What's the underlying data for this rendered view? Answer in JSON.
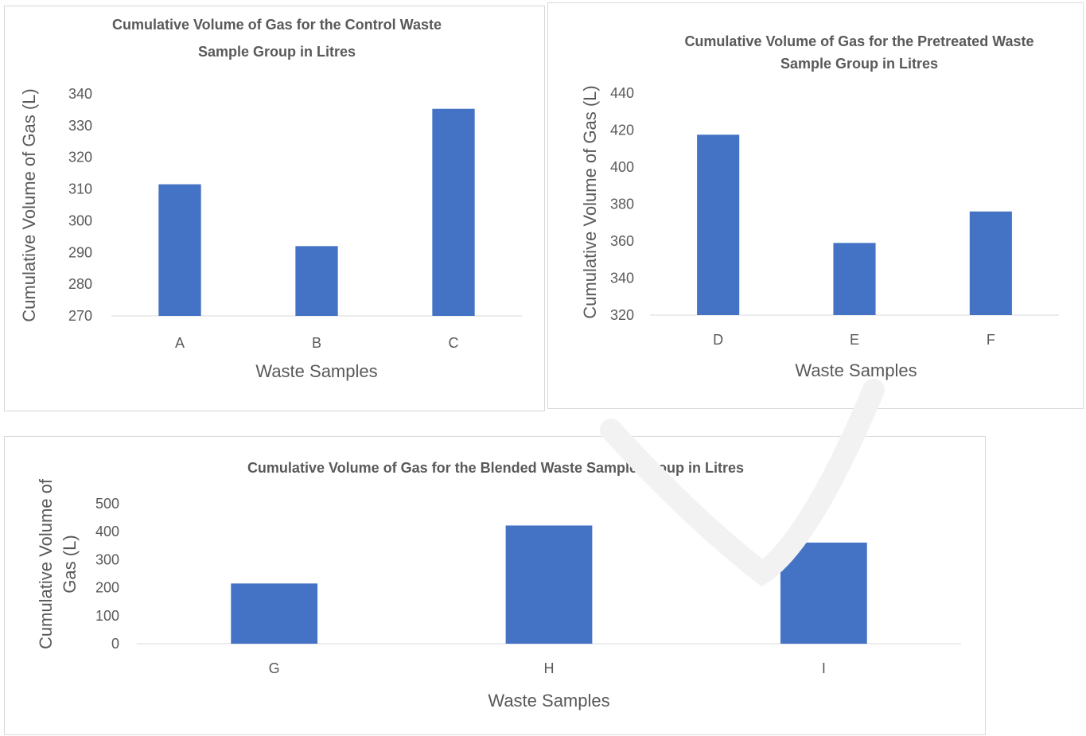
{
  "colors": {
    "bar": "#4472c4",
    "axis": "#d9d9d9",
    "text": "#595959"
  },
  "chart_data": [
    {
      "type": "bar",
      "title_lines": [
        "Cumulative Volume of Gas for the Control Waste",
        "Sample Group in Litres"
      ],
      "xlabel": "Waste Samples",
      "ylabel_lines": [
        "Cumulative Volume of Gas (L)"
      ],
      "categories": [
        "A",
        "B",
        "C"
      ],
      "values": [
        311.5,
        292,
        335.3
      ],
      "ylim": [
        270,
        340
      ],
      "yticks": [
        270,
        280,
        290,
        300,
        310,
        320,
        330,
        340
      ],
      "grid": false,
      "legend": "none"
    },
    {
      "type": "bar",
      "title_lines": [
        "Cumulative Volume of Gas for the Pretreated Waste",
        "Sample Group in Litres"
      ],
      "xlabel": "Waste Samples",
      "ylabel_lines": [
        "Cumulative Volume of Gas (L)"
      ],
      "categories": [
        "D",
        "E",
        "F"
      ],
      "values": [
        417.5,
        359,
        376
      ],
      "ylim": [
        320,
        440
      ],
      "yticks": [
        320,
        340,
        360,
        380,
        400,
        420,
        440
      ],
      "grid": false,
      "legend": "none"
    },
    {
      "type": "bar",
      "title_lines": [
        "Cumulative Volume of Gas for the Blended Waste Sample Group in Litres"
      ],
      "xlabel": "Waste Samples",
      "ylabel_lines": [
        "Cumulative Volume of",
        "Gas (L)"
      ],
      "categories": [
        "G",
        "H",
        "I"
      ],
      "values": [
        215,
        422,
        361
      ],
      "ylim": [
        0,
        500
      ],
      "yticks": [
        0,
        100,
        200,
        300,
        400,
        500
      ],
      "grid": false,
      "legend": "none"
    }
  ]
}
